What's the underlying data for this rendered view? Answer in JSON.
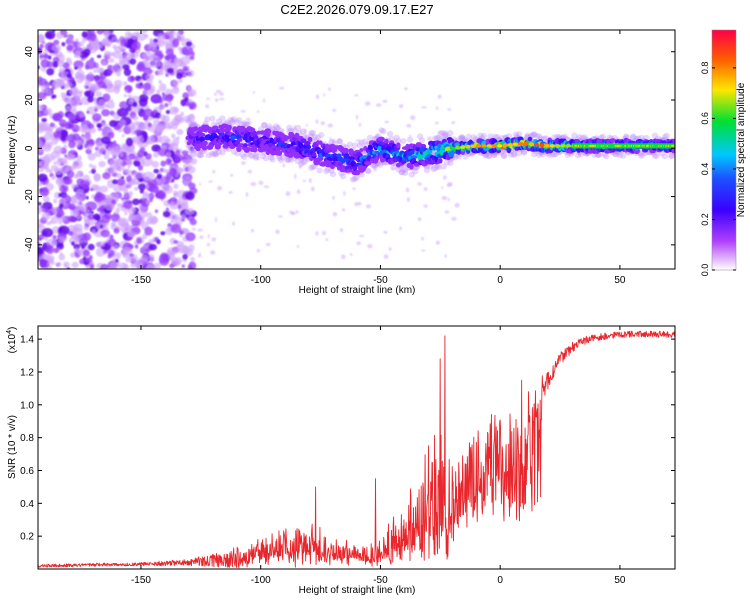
{
  "title": "C2E2.2026.079.09.17.E27",
  "colors": {
    "line_series": "#e8262b",
    "axis": "#000000",
    "background": "#ffffff"
  },
  "chart_data": [
    {
      "type": "heatmap",
      "name": "spectrogram",
      "xlabel": "Height of straight line (km)",
      "ylabel": "Frequency (Hz)",
      "xlim": [
        -193,
        73
      ],
      "ylim": [
        -50,
        49
      ],
      "x_ticks": [
        -150,
        -100,
        -50,
        0,
        50
      ],
      "x_tick_labels": [
        "-150",
        "-100",
        "-50",
        "0",
        "50"
      ],
      "y_ticks": [
        -40,
        -20,
        0,
        20,
        40
      ],
      "y_tick_labels": [
        "-40",
        "-20",
        "0",
        "20",
        "40"
      ],
      "colormap": [
        "#ffffff",
        "#a000ff",
        "#1a3cff",
        "#00c8ff",
        "#00e040",
        "#ffe600",
        "#ff6600",
        "#ff0040"
      ],
      "ridge": {
        "description": "main signal track frequency center (Hz) vs height (km)",
        "x": [
          -130,
          -115,
          -100,
          -85,
          -72,
          -60,
          -50,
          -40,
          -30,
          -20,
          -10,
          0,
          10,
          20,
          40,
          73
        ],
        "y": [
          4,
          5,
          3,
          1,
          -3,
          -6,
          0,
          -4,
          -2,
          0,
          1,
          1,
          2,
          1,
          1,
          1
        ],
        "peak_amplitude": [
          0.25,
          0.35,
          0.3,
          0.35,
          0.4,
          0.4,
          0.5,
          0.5,
          0.55,
          0.7,
          0.8,
          0.85,
          0.9,
          0.85,
          0.6,
          0.55
        ]
      },
      "noise_region_x_end": -128
    },
    {
      "type": "colorbar",
      "name": "colorbar",
      "label": "Normalized spectral amplitude",
      "range": [
        0,
        0.95
      ],
      "ticks": [
        0,
        0.2,
        0.4,
        0.6,
        0.8
      ],
      "tick_labels": [
        "0.0",
        "0.2",
        "0.4",
        "0.6",
        "0.8"
      ]
    },
    {
      "type": "line",
      "name": "snr",
      "xlabel": "Height of straight line (km)",
      "ylabel": "SNR (10 * v/v)",
      "exponent_label": "(x10",
      "exponent_value": "4",
      "exponent_close": ")",
      "xlim": [
        -193,
        73
      ],
      "ylim": [
        0,
        1.48
      ],
      "x_ticks": [
        -150,
        -100,
        -50,
        0,
        50
      ],
      "x_tick_labels": [
        "-150",
        "-100",
        "-50",
        "0",
        "50"
      ],
      "y_ticks": [
        0.2,
        0.4,
        0.6,
        0.8,
        1.0,
        1.2,
        1.4
      ],
      "y_tick_labels": [
        "0.2",
        "0.4",
        "0.6",
        "0.8",
        "1.0",
        "1.2",
        "1.4"
      ],
      "series": [
        {
          "name": "SNR",
          "envelope_x": [
            -193,
            -150,
            -130,
            -115,
            -105,
            -95,
            -85,
            -80,
            -75,
            -70,
            -62,
            -55,
            -50,
            -45,
            -40,
            -35,
            -30,
            -26,
            -24,
            -22,
            -20,
            -18,
            -15,
            -10,
            -5,
            0,
            5,
            8,
            10,
            12,
            15,
            20,
            25,
            30,
            35,
            40,
            50,
            60,
            73
          ],
          "envelope_base": [
            0.02,
            0.03,
            0.04,
            0.06,
            0.09,
            0.13,
            0.14,
            0.15,
            0.14,
            0.12,
            0.1,
            0.08,
            0.1,
            0.14,
            0.2,
            0.28,
            0.35,
            0.38,
            0.4,
            0.42,
            0.45,
            0.55,
            0.7,
            0.82,
            0.88,
            0.9,
            0.92,
            0.95,
            0.9,
            0.98,
            1.05,
            1.15,
            1.28,
            1.35,
            1.39,
            1.41,
            1.43,
            1.43,
            1.43
          ],
          "envelope_amp": [
            0.01,
            0.01,
            0.02,
            0.05,
            0.1,
            0.15,
            0.2,
            0.18,
            0.15,
            0.1,
            0.1,
            0.1,
            0.15,
            0.25,
            0.35,
            0.45,
            0.55,
            0.7,
            0.7,
            0.5,
            0.35,
            0.3,
            0.25,
            0.15,
            0.12,
            0.12,
            0.15,
            0.3,
            0.4,
            0.15,
            0.1,
            0.06,
            0.04,
            0.03,
            0.025,
            0.02,
            0.02,
            0.02,
            0.02
          ],
          "peaks": [
            {
              "x": -23,
              "y": 1.42
            },
            {
              "x": -25,
              "y": 1.28
            },
            {
              "x": 9,
              "y": 1.15
            },
            {
              "x": 10.5,
              "y": 0.4
            },
            {
              "x": -52,
              "y": 0.55
            },
            {
              "x": -77,
              "y": 0.5
            }
          ]
        }
      ]
    }
  ]
}
